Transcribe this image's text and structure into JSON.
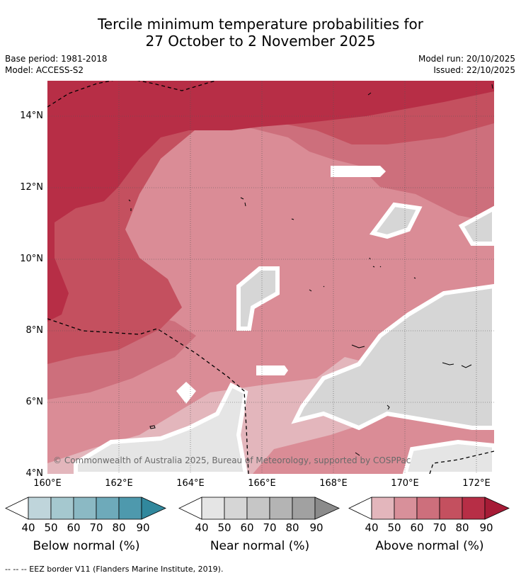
{
  "title_line1": "Tercile minimum temperature probabilities for",
  "title_line2": "27 October to 2 November 2025",
  "base_period": "Base period: 1981-2018",
  "model": "Model: ACCESS-S2",
  "model_run": "Model run: 20/10/2025",
  "issued": "Issued: 22/10/2025",
  "copyright": "© Commonwealth of Australia 2025, Bureau of Meteorology, supported by COSPPac",
  "footnote": "--  --  -- EEZ border V11 (Flanders Marine Institute, 2019).",
  "axes": {
    "x_ticks": [
      "160°E",
      "162°E",
      "164°E",
      "166°E",
      "168°E",
      "170°E",
      "172°E"
    ],
    "y_ticks": [
      "14°N",
      "12°N",
      "10°N",
      "8°N",
      "6°N",
      "4°N"
    ],
    "x_range": [
      160,
      172.5
    ],
    "y_range": [
      4,
      14.95
    ]
  },
  "colorbars": [
    {
      "label": "Below normal (%)",
      "ticks": [
        "40",
        "50",
        "60",
        "70",
        "80",
        "90"
      ],
      "colors": [
        "#bfd5db",
        "#a5c8cf",
        "#8bb9c4",
        "#6eaaba",
        "#4e99ad",
        "#31889d"
      ]
    },
    {
      "label": "Near normal (%)",
      "ticks": [
        "40",
        "50",
        "60",
        "70",
        "80",
        "90"
      ],
      "colors": [
        "#e5e5e5",
        "#d6d6d6",
        "#c6c6c6",
        "#b4b4b4",
        "#a1a1a1",
        "#8b8b8b"
      ]
    },
    {
      "label": "Above normal (%)",
      "ticks": [
        "40",
        "50",
        "60",
        "70",
        "80",
        "90"
      ],
      "colors": [
        "#e3b6bc",
        "#d8909a",
        "#cd6f7c",
        "#c4505f",
        "#b72e46",
        "#a61b36"
      ]
    }
  ],
  "colors": {
    "above_40": "#e3b6bc",
    "above_50": "#d8909a",
    "above_60": "#cd6f7c",
    "above_70": "#c4505f",
    "above_80": "#b72e46",
    "near_40": "#e5e5e5",
    "near_50": "#d6d6d6",
    "no_category": "#ffffff"
  }
}
